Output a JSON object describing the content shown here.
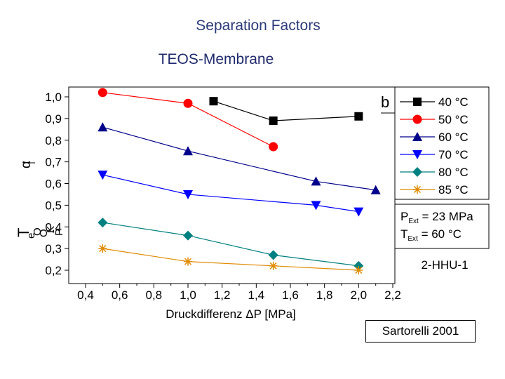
{
  "header": {
    "title": "Separation Factors",
    "subtitle": "TEOS-Membrane"
  },
  "colors": {
    "title": "#2b3a7a",
    "s40": "#000000",
    "s50": "#ff0000",
    "s60": "#00008b",
    "s70": "#0000ff",
    "s80": "#008080",
    "s85": "#e08a00"
  },
  "chart_data": {
    "type": "line",
    "title": "",
    "xlabel": "Druckdifferenz ΔP [MPa]",
    "ylabel_greek": "α",
    "ylabel_parts": [
      "T",
      "e",
      "O",
      "O",
      "K",
      "P"
    ],
    "xlim": [
      0.3,
      2.2
    ],
    "ylim": [
      0.17,
      1.05
    ],
    "xticks": [
      "0,4",
      "0,6",
      "0,8",
      "1,0",
      "1,2",
      "1,4",
      "1,6",
      "1,8",
      "2,0",
      "2,2"
    ],
    "xtick_values": [
      0.4,
      0.6,
      0.8,
      1.0,
      1.2,
      1.4,
      1.6,
      1.8,
      2.0,
      2.2
    ],
    "yticks": [
      "1,0",
      "0,9",
      "0,8",
      "0,7",
      "0,6",
      "0,5",
      "0,4",
      "0,3",
      "0,2"
    ],
    "ytick_values": [
      1.0,
      0.9,
      0.8,
      0.7,
      0.6,
      0.5,
      0.4,
      0.3,
      0.2
    ],
    "panel_label": "b",
    "series": [
      {
        "name": "40 °C",
        "color": "#000000",
        "marker": "square",
        "x": [
          1.15,
          1.5,
          2.0
        ],
        "y": [
          0.98,
          0.89,
          0.91
        ]
      },
      {
        "name": "50 °C",
        "color": "#ff0000",
        "marker": "circle",
        "x": [
          0.5,
          1.0,
          1.5
        ],
        "y": [
          1.02,
          0.97,
          0.77
        ]
      },
      {
        "name": "60 °C",
        "color": "#00008b",
        "marker": "triangle-up",
        "x": [
          0.5,
          1.0,
          1.75,
          2.1
        ],
        "y": [
          0.86,
          0.75,
          0.61,
          0.57
        ]
      },
      {
        "name": "70 °C",
        "color": "#0000ff",
        "marker": "triangle-down",
        "x": [
          0.5,
          1.0,
          1.75,
          2.0
        ],
        "y": [
          0.64,
          0.55,
          0.5,
          0.47
        ]
      },
      {
        "name": "80 °C",
        "color": "#008080",
        "marker": "diamond",
        "x": [
          0.5,
          1.0,
          1.5,
          2.0
        ],
        "y": [
          0.42,
          0.36,
          0.27,
          0.22
        ]
      },
      {
        "name": "85 °C",
        "color": "#e08a00",
        "marker": "star",
        "x": [
          0.5,
          1.0,
          1.5,
          2.0
        ],
        "y": [
          0.3,
          0.24,
          0.22,
          0.2
        ]
      }
    ],
    "conditions": [
      {
        "sym": "P",
        "sub": "Ext",
        "rest": " = 23 MPa"
      },
      {
        "sym": "T",
        "sub": "Ext",
        "rest": " = 60 °C"
      }
    ],
    "sample_label": "2-HHU-1"
  },
  "credit": "Sartorelli 2001"
}
